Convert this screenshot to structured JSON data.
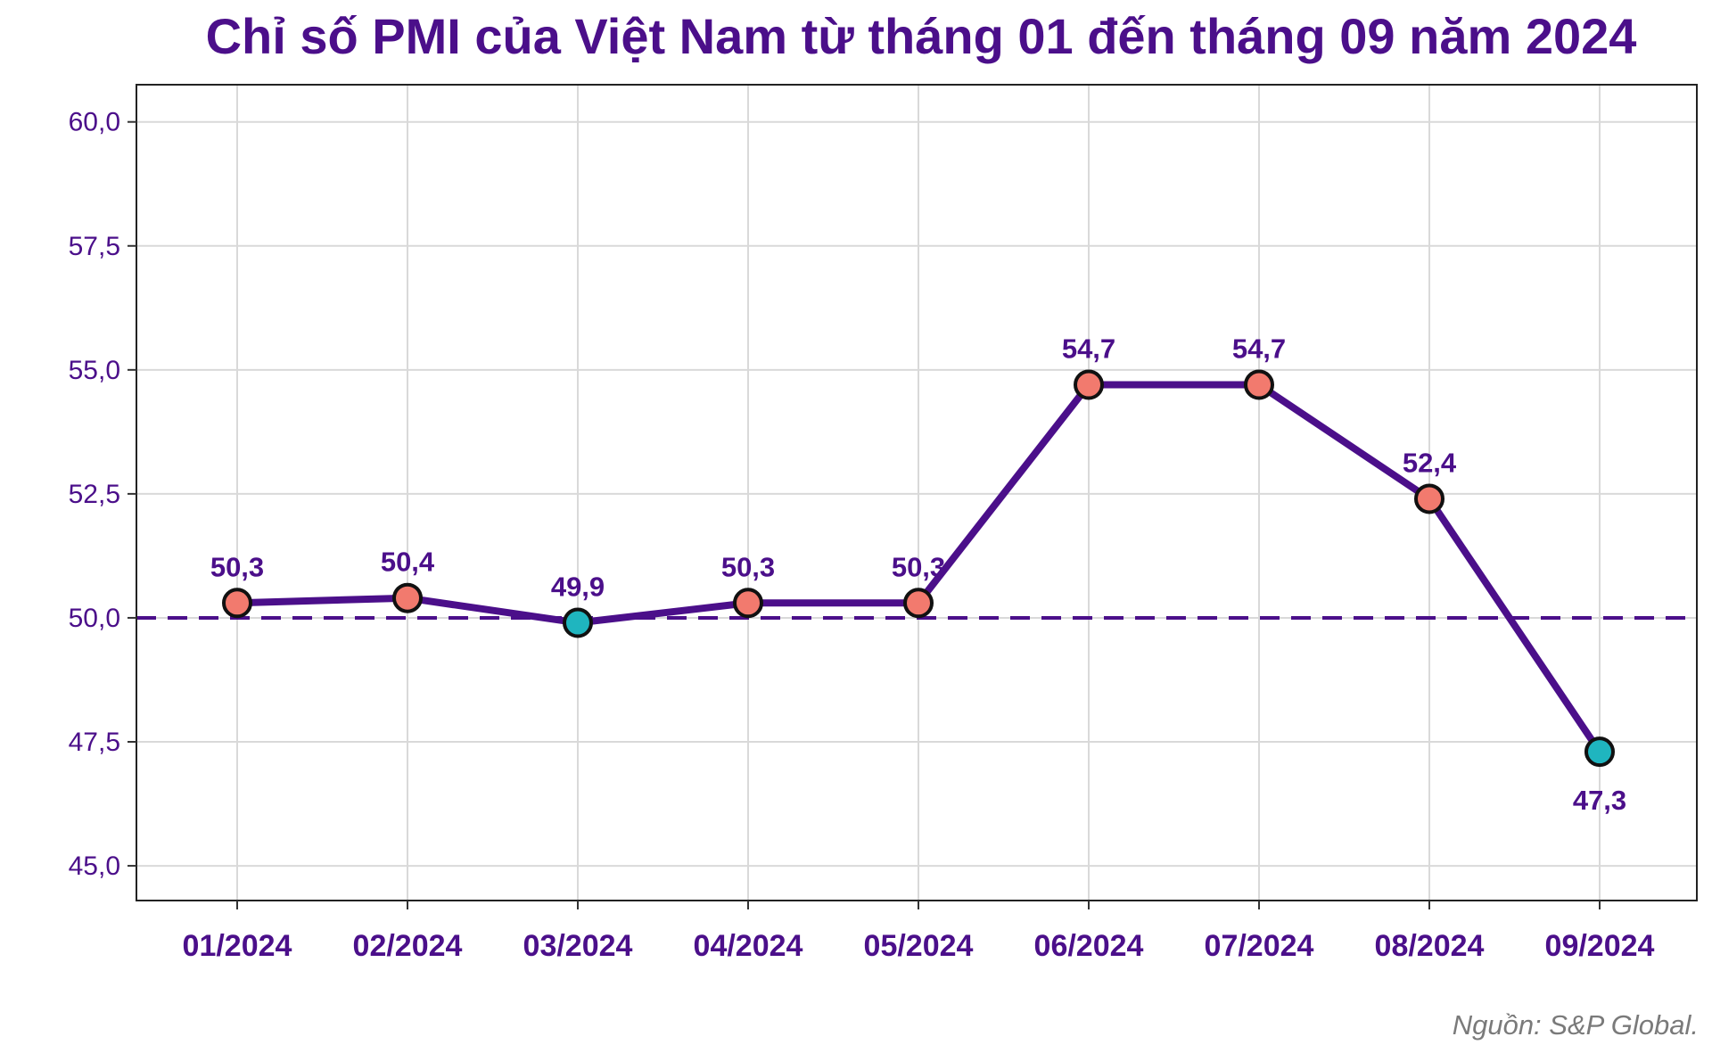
{
  "chart_data": {
    "type": "line",
    "title": "Chỉ số PMI của Việt Nam từ tháng 01 đến tháng 09 năm 2024",
    "xlabel": "",
    "ylabel": "",
    "categories": [
      "01/2024",
      "02/2024",
      "03/2024",
      "04/2024",
      "05/2024",
      "06/2024",
      "07/2024",
      "08/2024",
      "09/2024"
    ],
    "series": [
      {
        "values": [
          50.3,
          50.4,
          49.9,
          50.3,
          50.3,
          54.7,
          54.7,
          52.4,
          47.3
        ]
      }
    ],
    "data_labels": [
      "50,3",
      "50,4",
      "49,9",
      "50,3",
      "50,3",
      "54,7",
      "54,7",
      "52,4",
      "47,3"
    ],
    "ylim": [
      44.3,
      60.75
    ],
    "yticks": [
      45.0,
      47.5,
      50.0,
      52.5,
      55.0,
      57.5,
      60.0
    ],
    "ytick_labels": [
      "45,0",
      "47,5",
      "50,0",
      "52,5",
      "55,0",
      "57,5",
      "60,0"
    ],
    "reference_line": {
      "y": 50.0,
      "style": "dashed"
    },
    "grid": true,
    "legend": "none",
    "source_note": "Nguồn: S&P Global.",
    "colors": {
      "line": "#4B0F8A",
      "above_threshold": "#F27A6E",
      "below_threshold": "#1FB5BF",
      "text": "#4B0F8A",
      "grid": "#d9d9d9"
    }
  }
}
